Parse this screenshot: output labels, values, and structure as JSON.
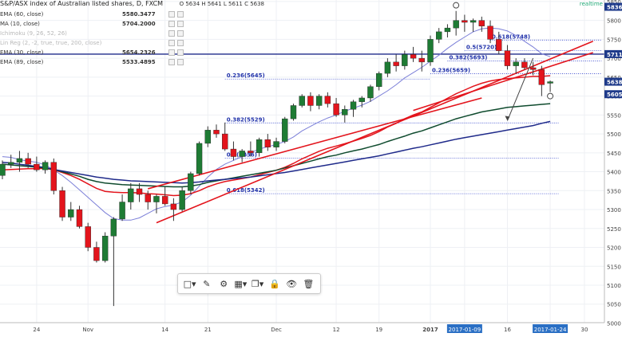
{
  "header": {
    "title": "S&P/ASX index of Australian listed shares, D, FXCM",
    "ohlc": "O 5634 H 5641 L 5611 C 5638",
    "realtime": "realtime"
  },
  "legend": [
    {
      "name": "EMA (60, close)",
      "value": "5580.3477",
      "faded": false
    },
    {
      "name": "MA (10, close)",
      "value": "5704.2000",
      "faded": false
    },
    {
      "name": "Ichimoku (9, 26, 52, 26)",
      "value": "",
      "faded": true
    },
    {
      "name": "Lin Reg (2, -2, true, true, 200, close)",
      "value": "",
      "faded": true
    },
    {
      "name": "EMA (30, close)",
      "value": "5654.2326",
      "faded": false
    },
    {
      "name": "EMA (89, close)",
      "value": "5533.4895",
      "faded": false
    }
  ],
  "price_labels": [
    {
      "text": "5836",
      "y": 5836,
      "color": "#1e3a8a"
    },
    {
      "text": "5711",
      "y": 5711,
      "color": "#1e3a8a"
    },
    {
      "text": "5638",
      "y": 5638,
      "color": "#1e3a8a"
    },
    {
      "text": "5605",
      "y": 5605,
      "color": "#1e3a8a"
    }
  ],
  "date_highlights": [
    "2017-01-09",
    "2017-01-24"
  ],
  "toolbar": [
    "frame-icon",
    "brush-icon",
    "gear-icon",
    "layers-icon",
    "copy-icon",
    "lock-icon",
    "eye-icon",
    "trash-icon"
  ],
  "colors": {
    "up": "#1e7b34",
    "down": "#e3141c",
    "ema60": "#0f4b2e",
    "ma10": "#7b7fd8",
    "ema30": "#e3141c",
    "ema89": "#1f2a8a",
    "trend": "#e3141c",
    "fib": "#3344cc",
    "hline": "#1f2a8a"
  },
  "chart_data": {
    "type": "candlestick",
    "title": "S&P/ASX index of Australian listed shares, D, FXCM",
    "ylim": [
      5000,
      5860
    ],
    "yticks": [
      5850,
      5800,
      5750,
      5700,
      5650,
      5600,
      5550,
      5500,
      5450,
      5400,
      5350,
      5300,
      5250,
      5200,
      5150,
      5100,
      5050,
      5000
    ],
    "xticks": [
      {
        "label": "24",
        "i": 4
      },
      {
        "label": "Nov",
        "i": 10
      },
      {
        "label": "14",
        "i": 19
      },
      {
        "label": "21",
        "i": 24
      },
      {
        "label": "Dec",
        "i": 32
      },
      {
        "label": "12",
        "i": 39
      },
      {
        "label": "19",
        "i": 44
      },
      {
        "label": "2017",
        "i": 50
      },
      {
        "label": "2017-01-09",
        "i": 54
      },
      {
        "label": "16",
        "i": 59
      },
      {
        "label": "2017-01-24",
        "i": 64
      },
      {
        "label": "30",
        "i": 68
      }
    ],
    "candles": [
      {
        "o": 5390,
        "h": 5430,
        "l": 5380,
        "c": 5420
      },
      {
        "o": 5420,
        "h": 5445,
        "l": 5410,
        "c": 5425
      },
      {
        "o": 5425,
        "h": 5455,
        "l": 5400,
        "c": 5435
      },
      {
        "o": 5435,
        "h": 5450,
        "l": 5410,
        "c": 5420
      },
      {
        "o": 5420,
        "h": 5440,
        "l": 5400,
        "c": 5405
      },
      {
        "o": 5405,
        "h": 5430,
        "l": 5395,
        "c": 5425
      },
      {
        "o": 5425,
        "h": 5435,
        "l": 5340,
        "c": 5350
      },
      {
        "o": 5350,
        "h": 5360,
        "l": 5270,
        "c": 5280
      },
      {
        "o": 5280,
        "h": 5320,
        "l": 5270,
        "c": 5300
      },
      {
        "o": 5300,
        "h": 5310,
        "l": 5250,
        "c": 5255
      },
      {
        "o": 5255,
        "h": 5265,
        "l": 5190,
        "c": 5200
      },
      {
        "o": 5200,
        "h": 5215,
        "l": 5160,
        "c": 5165
      },
      {
        "o": 5165,
        "h": 5240,
        "l": 5160,
        "c": 5230
      },
      {
        "o": 5230,
        "h": 5280,
        "l": 5045,
        "c": 5275
      },
      {
        "o": 5275,
        "h": 5340,
        "l": 5270,
        "c": 5320
      },
      {
        "o": 5320,
        "h": 5370,
        "l": 5300,
        "c": 5355
      },
      {
        "o": 5355,
        "h": 5370,
        "l": 5320,
        "c": 5340
      },
      {
        "o": 5340,
        "h": 5350,
        "l": 5300,
        "c": 5320
      },
      {
        "o": 5320,
        "h": 5340,
        "l": 5290,
        "c": 5335
      },
      {
        "o": 5335,
        "h": 5360,
        "l": 5310,
        "c": 5315
      },
      {
        "o": 5315,
        "h": 5330,
        "l": 5270,
        "c": 5300
      },
      {
        "o": 5300,
        "h": 5360,
        "l": 5295,
        "c": 5350
      },
      {
        "o": 5350,
        "h": 5400,
        "l": 5340,
        "c": 5395
      },
      {
        "o": 5395,
        "h": 5480,
        "l": 5390,
        "c": 5475
      },
      {
        "o": 5475,
        "h": 5520,
        "l": 5465,
        "c": 5510
      },
      {
        "o": 5510,
        "h": 5525,
        "l": 5490,
        "c": 5500
      },
      {
        "o": 5500,
        "h": 5530,
        "l": 5455,
        "c": 5460
      },
      {
        "o": 5460,
        "h": 5480,
        "l": 5430,
        "c": 5440
      },
      {
        "o": 5440,
        "h": 5460,
        "l": 5425,
        "c": 5455
      },
      {
        "o": 5455,
        "h": 5480,
        "l": 5440,
        "c": 5450
      },
      {
        "o": 5450,
        "h": 5490,
        "l": 5440,
        "c": 5485
      },
      {
        "o": 5485,
        "h": 5500,
        "l": 5455,
        "c": 5465
      },
      {
        "o": 5465,
        "h": 5490,
        "l": 5455,
        "c": 5480
      },
      {
        "o": 5480,
        "h": 5545,
        "l": 5475,
        "c": 5540
      },
      {
        "o": 5540,
        "h": 5580,
        "l": 5535,
        "c": 5575
      },
      {
        "o": 5575,
        "h": 5605,
        "l": 5570,
        "c": 5600
      },
      {
        "o": 5600,
        "h": 5610,
        "l": 5560,
        "c": 5575
      },
      {
        "o": 5575,
        "h": 5605,
        "l": 5565,
        "c": 5600
      },
      {
        "o": 5600,
        "h": 5610,
        "l": 5570,
        "c": 5580
      },
      {
        "o": 5580,
        "h": 5595,
        "l": 5545,
        "c": 5550
      },
      {
        "o": 5550,
        "h": 5575,
        "l": 5530,
        "c": 5565
      },
      {
        "o": 5565,
        "h": 5590,
        "l": 5545,
        "c": 5585
      },
      {
        "o": 5585,
        "h": 5600,
        "l": 5570,
        "c": 5595
      },
      {
        "o": 5595,
        "h": 5630,
        "l": 5585,
        "c": 5625
      },
      {
        "o": 5625,
        "h": 5665,
        "l": 5615,
        "c": 5660
      },
      {
        "o": 5660,
        "h": 5700,
        "l": 5650,
        "c": 5690
      },
      {
        "o": 5690,
        "h": 5710,
        "l": 5665,
        "c": 5680
      },
      {
        "o": 5680,
        "h": 5720,
        "l": 5670,
        "c": 5710
      },
      {
        "o": 5710,
        "h": 5730,
        "l": 5690,
        "c": 5700
      },
      {
        "o": 5700,
        "h": 5720,
        "l": 5665,
        "c": 5690
      },
      {
        "o": 5690,
        "h": 5760,
        "l": 5680,
        "c": 5750
      },
      {
        "o": 5750,
        "h": 5780,
        "l": 5740,
        "c": 5770
      },
      {
        "o": 5770,
        "h": 5790,
        "l": 5755,
        "c": 5780
      },
      {
        "o": 5780,
        "h": 5825,
        "l": 5760,
        "c": 5800
      },
      {
        "o": 5800,
        "h": 5815,
        "l": 5770,
        "c": 5795
      },
      {
        "o": 5795,
        "h": 5805,
        "l": 5770,
        "c": 5800
      },
      {
        "o": 5800,
        "h": 5810,
        "l": 5770,
        "c": 5785
      },
      {
        "o": 5785,
        "h": 5800,
        "l": 5740,
        "c": 5750
      },
      {
        "o": 5750,
        "h": 5770,
        "l": 5710,
        "c": 5720
      },
      {
        "o": 5720,
        "h": 5735,
        "l": 5670,
        "c": 5680
      },
      {
        "o": 5680,
        "h": 5700,
        "l": 5660,
        "c": 5690
      },
      {
        "o": 5690,
        "h": 5700,
        "l": 5670,
        "c": 5675
      },
      {
        "o": 5675,
        "h": 5690,
        "l": 5655,
        "c": 5670
      },
      {
        "o": 5670,
        "h": 5680,
        "l": 5600,
        "c": 5630
      },
      {
        "o": 5634,
        "h": 5641,
        "l": 5611,
        "c": 5638
      }
    ],
    "series": [
      {
        "name": "MA (10, close)",
        "color": "#7b7fd8",
        "values": [
          5440,
          5438,
          5432,
          5428,
          5425,
          5418,
          5405,
          5390,
          5372,
          5352,
          5332,
          5312,
          5292,
          5276,
          5272,
          5272,
          5278,
          5290,
          5302,
          5308,
          5312,
          5320,
          5338,
          5362,
          5386,
          5406,
          5420,
          5430,
          5440,
          5450,
          5460,
          5466,
          5472,
          5480,
          5492,
          5508,
          5520,
          5532,
          5542,
          5550,
          5560,
          5568,
          5576,
          5586,
          5600,
          5614,
          5630,
          5648,
          5662,
          5676,
          5692,
          5708,
          5726,
          5742,
          5756,
          5770,
          5778,
          5780,
          5778,
          5772,
          5760,
          5745,
          5730,
          5712,
          5704
        ]
      },
      {
        "name": "EMA (30, close)",
        "color": "#e3141c",
        "values": [
          5405,
          5406,
          5407,
          5408,
          5408,
          5409,
          5405,
          5398,
          5390,
          5380,
          5368,
          5356,
          5348,
          5346,
          5345,
          5345,
          5344,
          5342,
          5341,
          5339,
          5337,
          5338,
          5342,
          5350,
          5360,
          5368,
          5374,
          5378,
          5382,
          5386,
          5392,
          5398,
          5404,
          5412,
          5422,
          5434,
          5444,
          5454,
          5462,
          5468,
          5474,
          5481,
          5488,
          5496,
          5506,
          5518,
          5528,
          5540,
          5550,
          5558,
          5570,
          5582,
          5594,
          5606,
          5616,
          5626,
          5634,
          5640,
          5644,
          5646,
          5648,
          5650,
          5652,
          5652,
          5654
        ]
      },
      {
        "name": "EMA (60, close)",
        "color": "#0f4b2e",
        "values": [
          5420,
          5418,
          5416,
          5414,
          5412,
          5410,
          5406,
          5400,
          5394,
          5388,
          5380,
          5374,
          5370,
          5368,
          5366,
          5365,
          5364,
          5363,
          5362,
          5361,
          5360,
          5360,
          5362,
          5366,
          5372,
          5376,
          5380,
          5384,
          5388,
          5392,
          5396,
          5400,
          5404,
          5410,
          5416,
          5422,
          5428,
          5434,
          5440,
          5444,
          5450,
          5455,
          5460,
          5466,
          5472,
          5480,
          5487,
          5494,
          5502,
          5508,
          5516,
          5524,
          5532,
          5540,
          5546,
          5552,
          5558,
          5562,
          5566,
          5570,
          5572,
          5574,
          5576,
          5578,
          5580
        ]
      },
      {
        "name": "EMA (89, close)",
        "color": "#1f2a8a",
        "values": [
          5425,
          5423,
          5420,
          5417,
          5414,
          5411,
          5406,
          5402,
          5398,
          5394,
          5390,
          5386,
          5383,
          5380,
          5378,
          5376,
          5375,
          5374,
          5373,
          5372,
          5371,
          5370,
          5371,
          5373,
          5376,
          5378,
          5380,
          5382,
          5384,
          5386,
          5389,
          5392,
          5395,
          5398,
          5402,
          5406,
          5410,
          5414,
          5418,
          5422,
          5426,
          5430,
          5434,
          5438,
          5442,
          5447,
          5452,
          5457,
          5462,
          5466,
          5471,
          5476,
          5481,
          5486,
          5490,
          5494,
          5498,
          5502,
          5506,
          5510,
          5514,
          5518,
          5522,
          5528,
          5533
        ]
      }
    ],
    "trendlines": [
      {
        "from": [
          18,
          5265
        ],
        "to": [
          69,
          5745
        ],
        "color": "#e3141c"
      },
      {
        "from": [
          17,
          5355
        ],
        "to": [
          56,
          5595
        ],
        "color": "#e3141c"
      },
      {
        "from": [
          48,
          5562
        ],
        "to": [
          69,
          5715
        ],
        "color": "#e3141c"
      }
    ],
    "hline": {
      "y": 5711,
      "color": "#1f2a8a"
    },
    "fib_levels": [
      {
        "label": "0.618(5748)",
        "y": 5748,
        "from": 57,
        "to": 70
      },
      {
        "label": "0.5(5720)",
        "y": 5720,
        "from": 54,
        "to": 70
      },
      {
        "label": "0.382(5693)",
        "y": 5693,
        "from": 52,
        "to": 70
      },
      {
        "label": "0.236(5659)",
        "y": 5659,
        "from": 50,
        "to": 70
      },
      {
        "label": "0.236(5645)",
        "y": 5645,
        "from": 26,
        "to": 50
      },
      {
        "label": "0.382(5529)",
        "y": 5529,
        "from": 26,
        "to": 65
      },
      {
        "label": "0.5(5436)",
        "y": 5436,
        "from": 26,
        "to": 65
      },
      {
        "label": "0.618(5342)",
        "y": 5342,
        "from": 26,
        "to": 65
      }
    ],
    "markers": [
      {
        "i": 53,
        "y": 5840
      },
      {
        "i": 64,
        "y": 5600
      }
    ],
    "arrow": {
      "from": [
        62,
        5700
      ],
      "to": [
        59,
        5535
      ]
    },
    "price_scale_right": true
  }
}
